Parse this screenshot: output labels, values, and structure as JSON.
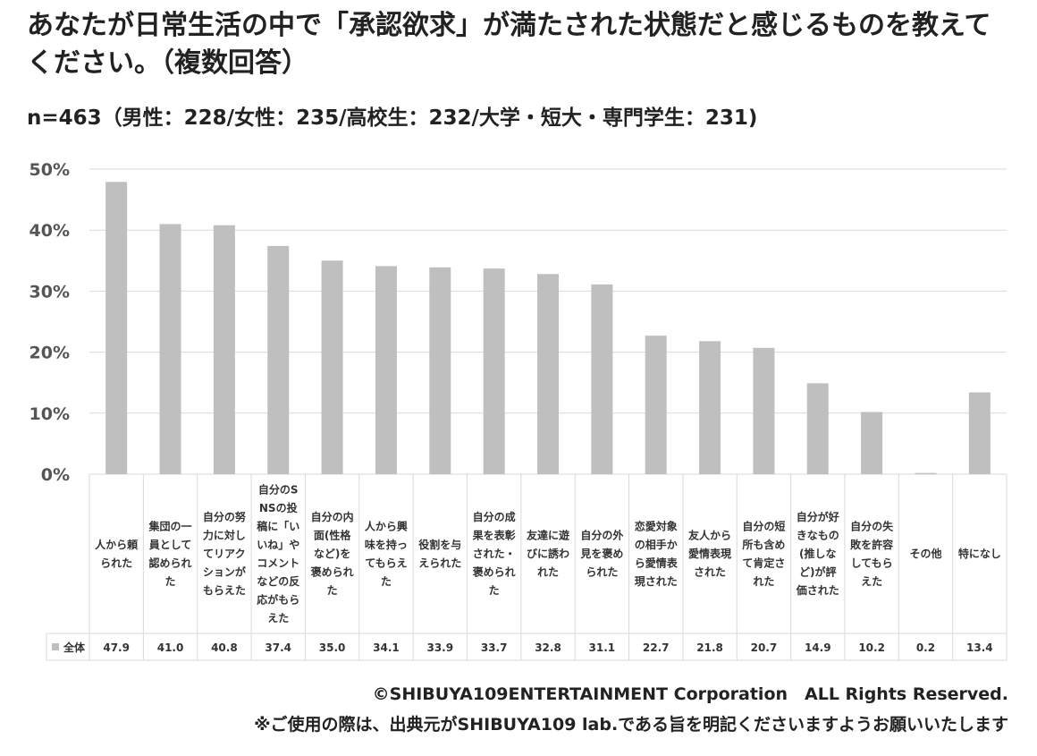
{
  "title": "あなたが日常生活の中で「承認欲求」が満たされた状態だと感じるものを教えてください。（複数回答）",
  "subtitle": "n=463（男性：228/女性：235/高校生：232/大学・短大・専門学生：231)",
  "footer": {
    "copyright": "©SHIBUYA109ENTERTAINMENT Corporation　ALL Rights Reserved.",
    "note": "※ご使用の際は、出典元がSHIBUYA109 lab.である旨を明記くださいますようお願いいたします"
  },
  "chart_data": {
    "type": "bar",
    "categories": [
      "人から頼られた",
      "集団の一員として認められた",
      "自分の努力に対してリアクションがもらえた",
      "自分のSNSの投稿に「いいね」やコメントなどの反応がもらえた",
      "自分の内面(性格など)を褒められた",
      "人から興味を持ってもらえた",
      "役割を与えられた",
      "自分の成果を表彰された・褒められた",
      "友達に遊びに誘われた",
      "自分の外見を褒められた",
      "恋愛対象の相手から愛情表現された",
      "友人から愛情表現された",
      "自分の短所も含めて肯定された",
      "自分が好きなもの(推しなど)が評価された",
      "自分の失敗を許容してもらえた",
      "その他",
      "特になし"
    ],
    "series": [
      {
        "name": "全体",
        "values": [
          47.9,
          41.0,
          40.8,
          37.4,
          35.0,
          34.1,
          33.9,
          33.7,
          32.8,
          31.1,
          22.7,
          21.8,
          20.7,
          14.9,
          10.2,
          0.2,
          13.4
        ],
        "labels": [
          "47.9",
          "41.0",
          "40.8",
          "37.4",
          "35.0",
          "34.1",
          "33.9",
          "33.7",
          "32.8",
          "31.1",
          "22.7",
          "21.8",
          "20.7",
          "14.9",
          "10.2",
          "0.2",
          "13.4"
        ]
      }
    ],
    "yticks": [
      "0%",
      "10%",
      "20%",
      "30%",
      "40%",
      "50%"
    ],
    "ylim": [
      0,
      50
    ],
    "grid": true,
    "legend": "data-table",
    "bar_color": "#bfbfbf",
    "grid_color": "#d9d9d9"
  }
}
